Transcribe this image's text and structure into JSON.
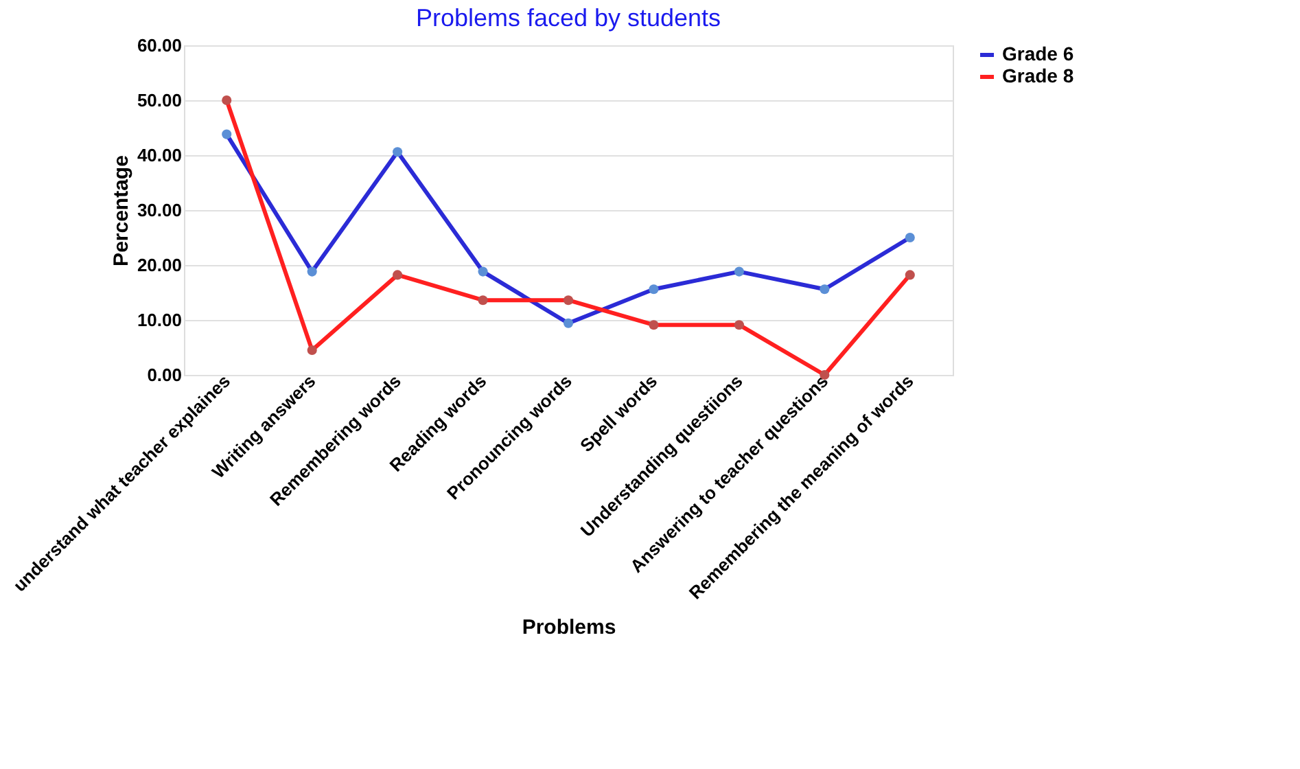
{
  "chart_data": {
    "type": "line",
    "title": "Problems faced by students",
    "xlabel": "Problems",
    "ylabel": "Percentage",
    "categories": [
      "understand what  teacher explaines",
      "Writing answers",
      "Remembering words",
      "Reading words",
      "Pronouncing words",
      "Spell words",
      "Understanding questiions",
      "Answering to teacher questions",
      "Remembering the meaning of words"
    ],
    "series": [
      {
        "name": "Grade 6",
        "color": "#2b2bd6",
        "values": [
          43.8,
          18.8,
          40.6,
          18.8,
          9.4,
          15.6,
          18.8,
          15.6,
          25.0
        ]
      },
      {
        "name": "Grade 8",
        "color": "#ff2020",
        "values": [
          50.0,
          4.5,
          18.2,
          13.6,
          13.6,
          9.1,
          9.1,
          0.0,
          18.2
        ]
      }
    ],
    "ylim": [
      0,
      60
    ],
    "yticks": [
      {
        "value": 0,
        "label": "0.00"
      },
      {
        "value": 10,
        "label": "10.00"
      },
      {
        "value": 20,
        "label": "20.00"
      },
      {
        "value": 30,
        "label": "30.00"
      },
      {
        "value": 40,
        "label": "40.00"
      },
      {
        "value": 50,
        "label": "50.00"
      },
      {
        "value": 60,
        "label": "60.00"
      }
    ],
    "grid": "y",
    "legend": "top right",
    "marker": "circle",
    "line_style": "solid"
  }
}
